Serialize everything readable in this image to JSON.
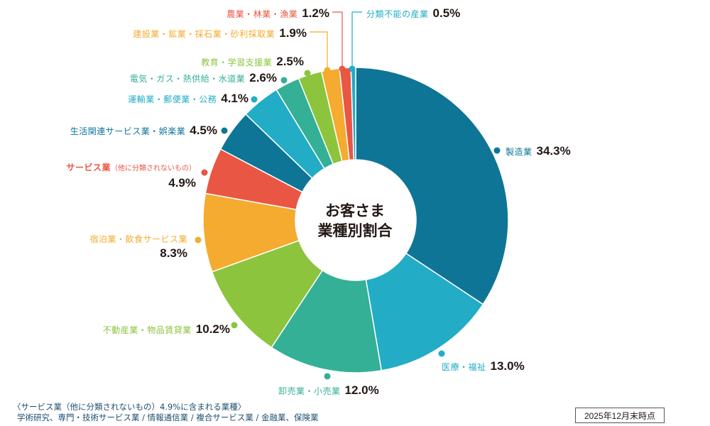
{
  "chart_data": {
    "type": "pie",
    "variant": "donut",
    "title": "お客さま業種別割合",
    "unit": "%",
    "categories": [
      "製造業",
      "医療・福祉",
      "卸売業・小売業",
      "不動産業・物品賃貸業",
      "宿泊業・飲食サービス業",
      "サービス業（他に分類されないもの）",
      "生活関連サービス業・娯楽業",
      "運輸業・郵便業・公務",
      "電気・ガス・熱供給・水道業",
      "教育・学習支援業",
      "建設業・鉱業・採石業・砂利採取業",
      "農業・林業・漁業",
      "分類不能の産業"
    ],
    "values": [
      34.3,
      13.0,
      12.0,
      10.2,
      8.3,
      4.9,
      4.5,
      4.1,
      2.6,
      2.5,
      1.9,
      1.2,
      0.5
    ],
    "colors": [
      "#0e7597",
      "#22acc6",
      "#33b096",
      "#8cc43e",
      "#f4ab2f",
      "#e95643",
      "#0e7597",
      "#22acc6",
      "#33b096",
      "#8cc43e",
      "#f4ab2f",
      "#e95643",
      "#22acc6"
    ],
    "start_angle_deg": 0,
    "direction": "clockwise"
  },
  "center": {
    "line1": "お客さま",
    "line2": "業種別割合"
  },
  "labels": [
    {
      "name": "製造業",
      "pct": "34.3%"
    },
    {
      "name": "医療・福祉",
      "pct": "13.0%"
    },
    {
      "name": "卸売業・小売業",
      "pct": "12.0%"
    },
    {
      "name": "不動産業・物品賃貸業",
      "pct": "10.2%"
    },
    {
      "name": "宿泊業・飲食サービス業",
      "pct": "8.3%"
    },
    {
      "name": "サービス業",
      "sub": "（他に分類されないもの）",
      "pct": "4.9%"
    },
    {
      "name": "生活関連サービス業・娯楽業",
      "pct": "4.5%"
    },
    {
      "name": "運輸業・郵便業・公務",
      "pct": "4.1%"
    },
    {
      "name": "電気・ガス・熱供給・水道業",
      "pct": "2.6%"
    },
    {
      "name": "教育・学習支援業",
      "pct": "2.5%"
    },
    {
      "name": "建設業・鉱業・採石業・砂利採取業",
      "pct": "1.9%"
    },
    {
      "name": "農業・林業・漁業",
      "pct": "1.2%"
    },
    {
      "name": "分類不能の産業",
      "pct": "0.5%"
    }
  ],
  "footnote": {
    "line1": "〈サービス業（他に分類されないもの）4.9%に含まれる業種〉",
    "line2": "学術研究、専門・技術サービス業 / 情報通信業 / 複合サービス業 / 金融業、保険業"
  },
  "as_of": "2025年12月末時点"
}
